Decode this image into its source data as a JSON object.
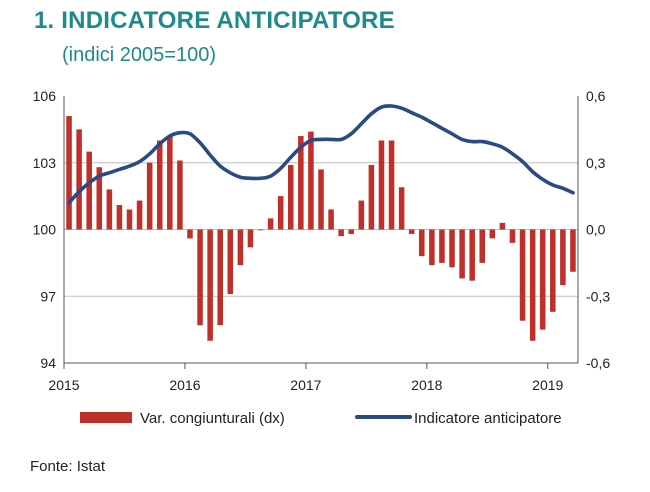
{
  "header": {
    "number": "1.",
    "title": "INDICATORE ANTICIPATORE",
    "subtitle": "(indici 2005=100)"
  },
  "footer": {
    "source": "Fonte: Istat"
  },
  "colors": {
    "bars": "#c0302a",
    "line": "#2b4a84",
    "title": "#1f8a8a",
    "grid": "#bfbfbf"
  },
  "chart_data": {
    "type": "bar+line",
    "x_tick_labels": [
      "2015",
      "2016",
      "2017",
      "2018",
      "2019"
    ],
    "y_left": {
      "ylim": [
        94,
        106
      ],
      "ticks": [
        94,
        97,
        100,
        103,
        106
      ],
      "tick_labels": [
        "94",
        "97",
        "100",
        "103",
        "106"
      ]
    },
    "y_right": {
      "ylim": [
        -0.6,
        0.6
      ],
      "ticks": [
        -0.6,
        -0.3,
        0.0,
        0.3,
        0.6
      ],
      "tick_labels": [
        "-0,6",
        "-0,3",
        "0,0",
        "0,3",
        "0,6"
      ]
    },
    "months": [
      "2015-01",
      "2015-02",
      "2015-03",
      "2015-04",
      "2015-05",
      "2015-06",
      "2015-07",
      "2015-08",
      "2015-09",
      "2015-10",
      "2015-11",
      "2015-12",
      "2016-01",
      "2016-02",
      "2016-03",
      "2016-04",
      "2016-05",
      "2016-06",
      "2016-07",
      "2016-08",
      "2016-09",
      "2016-10",
      "2016-11",
      "2016-12",
      "2017-01",
      "2017-02",
      "2017-03",
      "2017-04",
      "2017-05",
      "2017-06",
      "2017-07",
      "2017-08",
      "2017-09",
      "2017-10",
      "2017-11",
      "2017-12",
      "2018-01",
      "2018-02",
      "2018-03",
      "2018-04",
      "2018-05",
      "2018-06",
      "2018-07",
      "2018-08",
      "2018-09",
      "2018-10",
      "2018-11",
      "2018-12",
      "2019-01",
      "2019-02",
      "2019-03"
    ],
    "series": [
      {
        "name": "Var. congiunturali (dx)",
        "type": "bar",
        "axis": "right",
        "values": [
          0.51,
          0.45,
          0.35,
          0.28,
          0.18,
          0.11,
          0.09,
          0.13,
          0.3,
          0.4,
          0.42,
          0.31,
          -0.04,
          -0.43,
          -0.5,
          -0.43,
          -0.29,
          -0.16,
          -0.08,
          0.0,
          0.05,
          0.15,
          0.29,
          0.42,
          0.44,
          0.27,
          0.09,
          -0.03,
          -0.02,
          0.13,
          0.29,
          0.4,
          0.4,
          0.19,
          -0.02,
          -0.12,
          -0.16,
          -0.15,
          -0.17,
          -0.22,
          -0.23,
          -0.15,
          -0.04,
          0.03,
          -0.06,
          -0.41,
          -0.5,
          -0.45,
          -0.37,
          -0.25,
          -0.19
        ]
      },
      {
        "name": "Indicatore anticipatore",
        "type": "line",
        "axis": "left",
        "values": [
          101.2,
          101.7,
          102.1,
          102.4,
          102.55,
          102.7,
          102.85,
          103.05,
          103.4,
          103.85,
          104.2,
          104.35,
          104.3,
          103.9,
          103.35,
          102.85,
          102.55,
          102.35,
          102.3,
          102.3,
          102.4,
          102.75,
          103.25,
          103.7,
          104.0,
          104.05,
          104.05,
          104.05,
          104.3,
          104.75,
          105.2,
          105.5,
          105.55,
          105.45,
          105.25,
          105.05,
          104.8,
          104.55,
          104.3,
          104.05,
          103.95,
          103.95,
          103.85,
          103.7,
          103.4,
          103.05,
          102.6,
          102.25,
          102.0,
          101.85,
          101.65
        ]
      }
    ]
  }
}
